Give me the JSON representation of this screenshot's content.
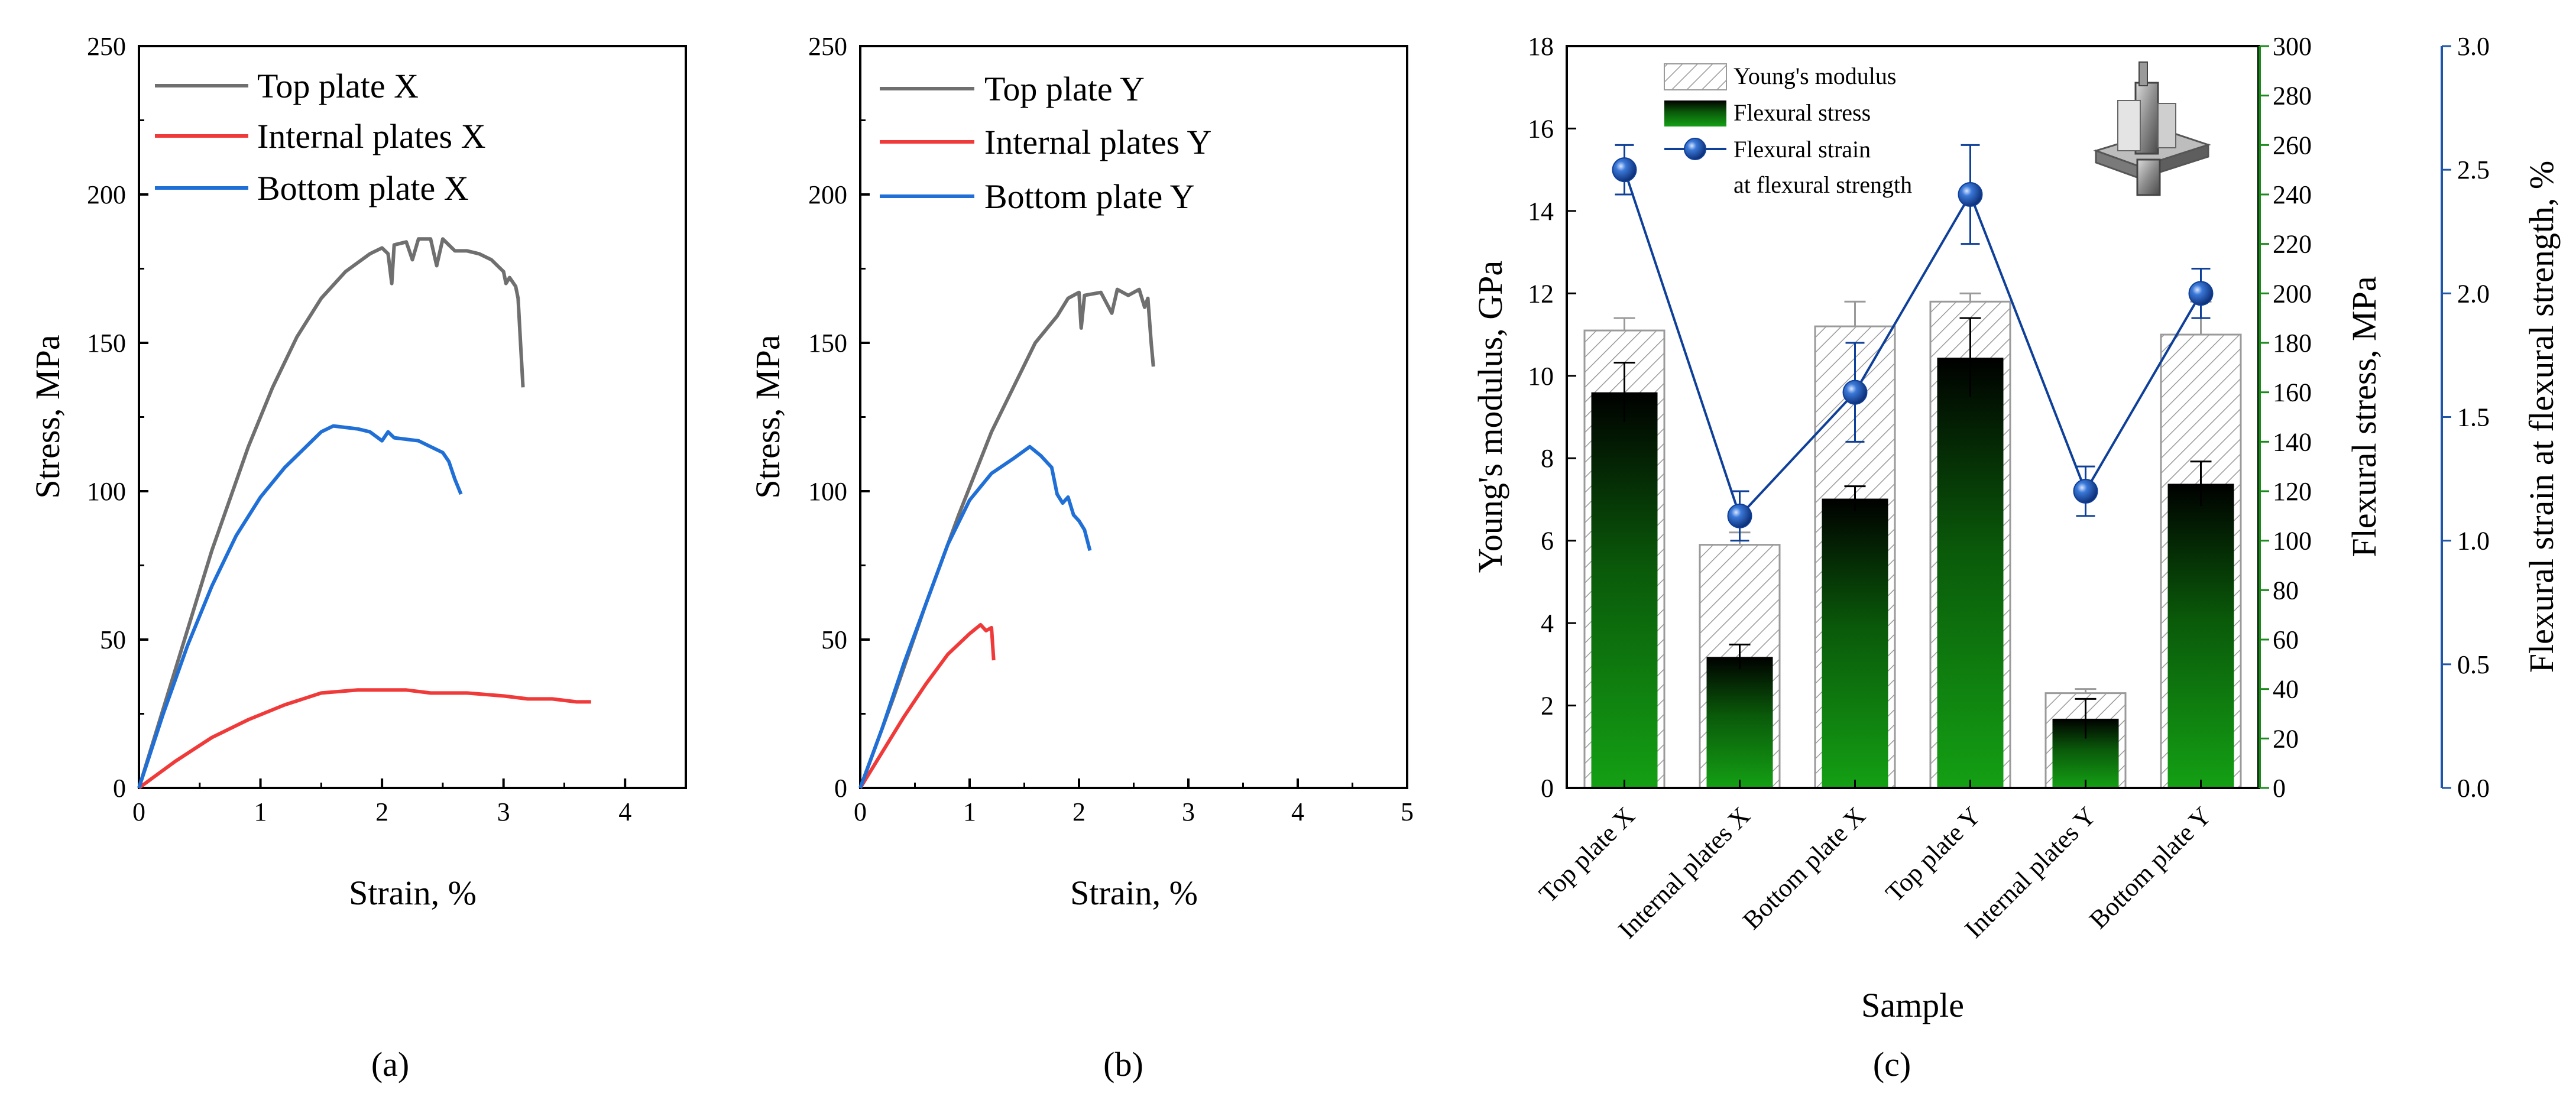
{
  "colors": {
    "top": "#6f6f6f",
    "internal": "#f03a3a",
    "bottom": "#1f6fd6",
    "modulus_axis": "#9a9a9a",
    "stress_axis": "#1a8a1a",
    "strain_axis": "#1f55a8",
    "strain_line": "#0e3f99"
  },
  "chart_data": [
    {
      "type": "line",
      "caption": "(a)",
      "xlabel": "Strain, %",
      "ylabel": "Stress, MPa",
      "xlim": [
        0,
        4.5
      ],
      "ylim": [
        0,
        250
      ],
      "xticks": [
        0,
        1,
        2,
        3,
        4
      ],
      "yticks": [
        0,
        50,
        100,
        150,
        200,
        250
      ],
      "legend_position": "top-left",
      "series": [
        {
          "name": "Top plate X",
          "color_key": "top",
          "points": [
            [
              0,
              0
            ],
            [
              0.3,
              40
            ],
            [
              0.6,
              80
            ],
            [
              0.9,
              115
            ],
            [
              1.1,
              135
            ],
            [
              1.3,
              152
            ],
            [
              1.5,
              165
            ],
            [
              1.7,
              174
            ],
            [
              1.9,
              180
            ],
            [
              2.0,
              182
            ],
            [
              2.05,
              180
            ],
            [
              2.08,
              170
            ],
            [
              2.1,
              183
            ],
            [
              2.2,
              184
            ],
            [
              2.25,
              178
            ],
            [
              2.3,
              185
            ],
            [
              2.4,
              185
            ],
            [
              2.45,
              176
            ],
            [
              2.5,
              185
            ],
            [
              2.6,
              181
            ],
            [
              2.7,
              181
            ],
            [
              2.8,
              180
            ],
            [
              2.9,
              178
            ],
            [
              2.95,
              176
            ],
            [
              3.0,
              174
            ],
            [
              3.02,
              170
            ],
            [
              3.05,
              172
            ],
            [
              3.1,
              169
            ],
            [
              3.12,
              165
            ],
            [
              3.14,
              150
            ],
            [
              3.16,
              135
            ]
          ]
        },
        {
          "name": "Internal plates X",
          "color_key": "internal",
          "points": [
            [
              0,
              0
            ],
            [
              0.3,
              9
            ],
            [
              0.6,
              17
            ],
            [
              0.9,
              23
            ],
            [
              1.2,
              28
            ],
            [
              1.5,
              32
            ],
            [
              1.8,
              33
            ],
            [
              2.0,
              33
            ],
            [
              2.2,
              33
            ],
            [
              2.4,
              32
            ],
            [
              2.7,
              32
            ],
            [
              3.0,
              31
            ],
            [
              3.2,
              30
            ],
            [
              3.4,
              30
            ],
            [
              3.6,
              29
            ],
            [
              3.72,
              29
            ]
          ]
        },
        {
          "name": "Bottom plate X",
          "color_key": "bottom",
          "points": [
            [
              0,
              0
            ],
            [
              0.2,
              25
            ],
            [
              0.4,
              48
            ],
            [
              0.6,
              68
            ],
            [
              0.8,
              85
            ],
            [
              1.0,
              98
            ],
            [
              1.2,
              108
            ],
            [
              1.4,
              116
            ],
            [
              1.5,
              120
            ],
            [
              1.6,
              122
            ],
            [
              1.8,
              121
            ],
            [
              1.9,
              120
            ],
            [
              2.0,
              117
            ],
            [
              2.05,
              120
            ],
            [
              2.1,
              118
            ],
            [
              2.3,
              117
            ],
            [
              2.4,
              115
            ],
            [
              2.5,
              113
            ],
            [
              2.55,
              110
            ],
            [
              2.6,
              104
            ],
            [
              2.65,
              99
            ]
          ]
        }
      ]
    },
    {
      "type": "line",
      "caption": "(b)",
      "xlabel": "Strain, %",
      "ylabel": "Stress, MPa",
      "xlim": [
        0,
        5
      ],
      "ylim": [
        0,
        250
      ],
      "xticks": [
        0,
        1,
        2,
        3,
        4,
        5
      ],
      "yticks": [
        0,
        50,
        100,
        150,
        200,
        250
      ],
      "legend_position": "top-left",
      "series": [
        {
          "name": "Top plate Y",
          "color_key": "top",
          "points": [
            [
              0,
              0
            ],
            [
              0.3,
              30
            ],
            [
              0.6,
              62
            ],
            [
              0.9,
              92
            ],
            [
              1.2,
              120
            ],
            [
              1.4,
              135
            ],
            [
              1.6,
              150
            ],
            [
              1.8,
              159
            ],
            [
              1.9,
              165
            ],
            [
              2.0,
              167
            ],
            [
              2.02,
              155
            ],
            [
              2.05,
              166
            ],
            [
              2.2,
              167
            ],
            [
              2.3,
              160
            ],
            [
              2.35,
              168
            ],
            [
              2.45,
              166
            ],
            [
              2.55,
              168
            ],
            [
              2.6,
              162
            ],
            [
              2.63,
              165
            ],
            [
              2.66,
              150
            ],
            [
              2.68,
              142
            ]
          ]
        },
        {
          "name": "Internal plates Y",
          "color_key": "internal",
          "points": [
            [
              0,
              0
            ],
            [
              0.2,
              12
            ],
            [
              0.4,
              24
            ],
            [
              0.6,
              35
            ],
            [
              0.8,
              45
            ],
            [
              1.0,
              52
            ],
            [
              1.1,
              55
            ],
            [
              1.15,
              53
            ],
            [
              1.2,
              54
            ],
            [
              1.22,
              43
            ]
          ]
        },
        {
          "name": "Bottom plate Y",
          "color_key": "bottom",
          "points": [
            [
              0,
              0
            ],
            [
              0.2,
              20
            ],
            [
              0.4,
              42
            ],
            [
              0.6,
              62
            ],
            [
              0.8,
              82
            ],
            [
              1.0,
              97
            ],
            [
              1.2,
              106
            ],
            [
              1.4,
              111
            ],
            [
              1.55,
              115
            ],
            [
              1.65,
              112
            ],
            [
              1.75,
              108
            ],
            [
              1.8,
              99
            ],
            [
              1.85,
              96
            ],
            [
              1.9,
              98
            ],
            [
              1.95,
              92
            ],
            [
              2.0,
              90
            ],
            [
              2.05,
              87
            ],
            [
              2.1,
              80
            ]
          ]
        }
      ]
    },
    {
      "type": "bar",
      "caption": "(c)",
      "xlabel": "Sample",
      "categories": [
        "Top plate X",
        "Internal plates X",
        "Bottom plate X",
        "Top plate Y",
        "Internal plates Y",
        "Bottom plate Y"
      ],
      "inset_image": "specimen-render",
      "axes": {
        "left": {
          "label": "Young's modulus, GPa",
          "ylim": [
            0,
            18
          ],
          "ticks": [
            0,
            2,
            4,
            6,
            8,
            10,
            12,
            14,
            16,
            18
          ]
        },
        "right1": {
          "label": "Flexural stress, MPa",
          "ylim": [
            0,
            300
          ],
          "ticks": [
            0,
            20,
            40,
            60,
            80,
            100,
            120,
            140,
            160,
            180,
            200,
            220,
            240,
            260,
            280,
            300
          ]
        },
        "right2": {
          "label": "Flexural strain at flexural strength, %",
          "ylim": [
            0,
            3.0
          ],
          "ticks": [
            "0.0",
            "0.5",
            "1.0",
            "1.5",
            "2.0",
            "2.5",
            "3.0"
          ]
        }
      },
      "series": [
        {
          "name": "Young's modulus",
          "axis": "left",
          "kind": "hatched-bar",
          "values": [
            11.1,
            5.9,
            11.2,
            11.8,
            2.3,
            11.0
          ],
          "errors": [
            0.3,
            0.3,
            0.6,
            0.2,
            0.1,
            0.8
          ]
        },
        {
          "name": "Flexural stress",
          "axis": "right1",
          "kind": "gradient-bar",
          "values": [
            160,
            53,
            117,
            174,
            28,
            123
          ],
          "errors": [
            12,
            5,
            5,
            16,
            8,
            9
          ]
        },
        {
          "name": "Flexural strain",
          "name_line2": "at flexural strength",
          "axis": "right2",
          "kind": "line-marker",
          "values": [
            2.5,
            1.1,
            1.6,
            2.4,
            1.2,
            2.0
          ],
          "errors": [
            0.1,
            0.1,
            0.2,
            0.2,
            0.1,
            0.1
          ]
        }
      ]
    }
  ]
}
